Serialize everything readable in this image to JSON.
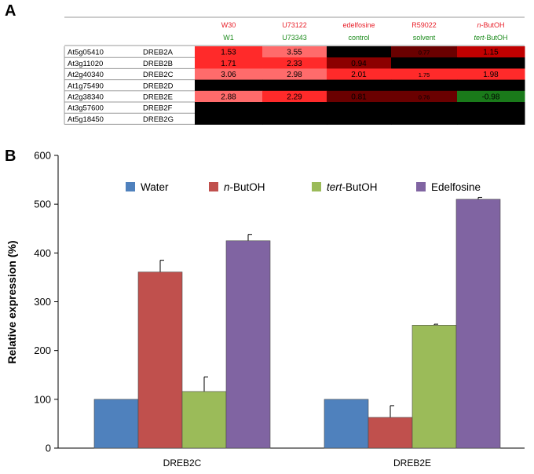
{
  "panel_a": {
    "letter": "A",
    "headers_top": [
      {
        "segments": [
          {
            "text": "W30",
            "italic": false
          }
        ]
      },
      {
        "segments": [
          {
            "text": "U73122",
            "italic": false
          }
        ]
      },
      {
        "segments": [
          {
            "text": "edelfosine",
            "italic": false
          }
        ]
      },
      {
        "segments": [
          {
            "text": "R59022",
            "italic": false
          }
        ]
      },
      {
        "segments": [
          {
            "text": "n",
            "italic": true
          },
          {
            "text": "-ButOH",
            "italic": false
          }
        ]
      }
    ],
    "headers_bottom": [
      {
        "segments": [
          {
            "text": "W1",
            "italic": false
          }
        ]
      },
      {
        "segments": [
          {
            "text": "U73343",
            "italic": false
          }
        ]
      },
      {
        "segments": [
          {
            "text": "control",
            "italic": false
          }
        ]
      },
      {
        "segments": [
          {
            "text": "solvent",
            "italic": false
          }
        ]
      },
      {
        "segments": [
          {
            "text": "tert",
            "italic": true
          },
          {
            "text": "-ButOH",
            "italic": false
          }
        ]
      }
    ],
    "colors": {
      "header_top": "#e8202a",
      "header_bottom": "#1a8a1a"
    },
    "rows": [
      {
        "locus": "At5g05410",
        "gene": "DREB2A",
        "cells": [
          {
            "value": "1.53",
            "color": "#ff2a2a",
            "small": false
          },
          {
            "value": "3.55",
            "color": "#ff6b6b",
            "small": false
          },
          {
            "value": "",
            "color": "#000000",
            "small": false
          },
          {
            "value": "0.77",
            "color": "#6a0000",
            "small": true
          },
          {
            "value": "1.15",
            "color": "#c00000",
            "small": false
          }
        ]
      },
      {
        "locus": "At3g11020",
        "gene": "DREB2B",
        "cells": [
          {
            "value": "1.71",
            "color": "#ff2a2a",
            "small": false
          },
          {
            "value": "2.33",
            "color": "#ff2a2a",
            "small": false
          },
          {
            "value": "0.94",
            "color": "#8c0000",
            "small": false
          },
          {
            "value": "",
            "color": "#000000",
            "small": false
          },
          {
            "value": "",
            "color": "#000000",
            "small": false
          }
        ]
      },
      {
        "locus": "At2g40340",
        "gene": "DREB2C",
        "cells": [
          {
            "value": "3.06",
            "color": "#ff6b6b",
            "small": false
          },
          {
            "value": "2.98",
            "color": "#ff6b6b",
            "small": false
          },
          {
            "value": "2.01",
            "color": "#ff2a2a",
            "small": false
          },
          {
            "value": "1.75",
            "color": "#ff2a2a",
            "small": true
          },
          {
            "value": "1.98",
            "color": "#ff2a2a",
            "small": false
          }
        ]
      },
      {
        "locus": "At1g75490",
        "gene": "DREB2D",
        "cells": [
          {
            "value": "",
            "color": "#000000",
            "small": false
          },
          {
            "value": "",
            "color": "#000000",
            "small": false
          },
          {
            "value": "",
            "color": "#000000",
            "small": false
          },
          {
            "value": "",
            "color": "#000000",
            "small": false
          },
          {
            "value": "",
            "color": "#000000",
            "small": false
          }
        ]
      },
      {
        "locus": "At2g38340",
        "gene": "DREB2E",
        "cells": [
          {
            "value": "2.88",
            "color": "#ff6b6b",
            "small": false
          },
          {
            "value": "2.29",
            "color": "#ff2a2a",
            "small": false
          },
          {
            "value": "0.81",
            "color": "#6a0000",
            "small": false
          },
          {
            "value": "0.76",
            "color": "#6a0000",
            "small": true
          },
          {
            "value": "-0.98",
            "color": "#1a7a1a",
            "small": false
          }
        ]
      },
      {
        "locus": "At3g57600",
        "gene": "DREB2F",
        "cells": [
          {
            "value": "",
            "color": "#000000",
            "small": false
          },
          {
            "value": "",
            "color": "#000000",
            "small": false
          },
          {
            "value": "",
            "color": "#000000",
            "small": false
          },
          {
            "value": "",
            "color": "#000000",
            "small": false
          },
          {
            "value": "",
            "color": "#000000",
            "small": false
          }
        ]
      },
      {
        "locus": "At5g18450",
        "gene": "DREB2G",
        "cells": [
          {
            "value": "",
            "color": "#000000",
            "small": false
          },
          {
            "value": "",
            "color": "#000000",
            "small": false
          },
          {
            "value": "",
            "color": "#000000",
            "small": false
          },
          {
            "value": "",
            "color": "#000000",
            "small": false
          },
          {
            "value": "",
            "color": "#000000",
            "small": false
          }
        ]
      }
    ]
  },
  "panel_b": {
    "letter": "B",
    "chart_data": {
      "type": "bar",
      "title": "",
      "xlabel": "",
      "ylabel": "Relative expression (%)",
      "ylim": [
        0,
        600
      ],
      "yticks": [
        0,
        100,
        200,
        300,
        400,
        500,
        600
      ],
      "categories": [
        "DREB2C",
        "DREB2E"
      ],
      "series": [
        {
          "name": "Water",
          "segments": [
            {
              "text": "Water",
              "italic": false
            }
          ],
          "color": "#4f81bd",
          "values": [
            100,
            100
          ],
          "errors": [
            0,
            0
          ]
        },
        {
          "name": "n-ButOH",
          "segments": [
            {
              "text": "n",
              "italic": true
            },
            {
              "text": "-ButOH",
              "italic": false
            }
          ],
          "color": "#c0504d",
          "values": [
            361,
            63
          ],
          "errors": [
            24,
            24
          ]
        },
        {
          "name": "tert-ButOH",
          "segments": [
            {
              "text": "tert",
              "italic": true
            },
            {
              "text": "-ButOH",
              "italic": false
            }
          ],
          "color": "#9bbb59",
          "values": [
            116,
            252
          ],
          "errors": [
            30,
            2
          ]
        },
        {
          "name": "Edelfosine",
          "segments": [
            {
              "text": "Edelfosine",
              "italic": false
            }
          ],
          "color": "#8064a2",
          "values": [
            425,
            510
          ],
          "errors": [
            13,
            4
          ]
        }
      ],
      "legend": "top"
    }
  }
}
